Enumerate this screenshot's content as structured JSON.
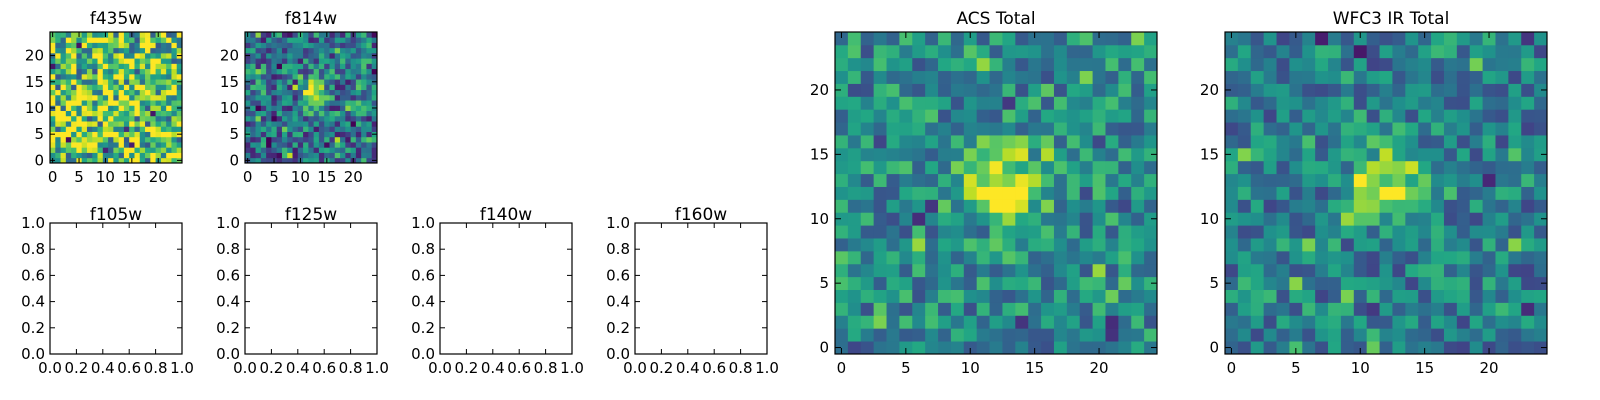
{
  "figure": {
    "background": "#ffffff",
    "colormap": "viridis"
  },
  "chart_data": [
    {
      "id": "f435w",
      "type": "heatmap",
      "title": "f435w",
      "image_size": 25,
      "xlim": [
        -0.5,
        24.5
      ],
      "ylim": [
        -0.5,
        24.5
      ],
      "xticks": [
        0,
        5,
        10,
        15,
        20
      ],
      "yticks": [
        0,
        5,
        10,
        15,
        20
      ],
      "tick_labels_x": [
        "0",
        "5",
        "10",
        "15",
        "20"
      ],
      "tick_labels_y": [
        "0",
        "5",
        "10",
        "15",
        "20"
      ],
      "source": {
        "center": [
          12,
          12
        ],
        "amplitude": 0.05,
        "sigma": 2.5
      },
      "background": {
        "level": 0.72,
        "noise": 0.45,
        "seed": 11
      }
    },
    {
      "id": "f814w",
      "type": "heatmap",
      "title": "f814w",
      "image_size": 25,
      "xlim": [
        -0.5,
        24.5
      ],
      "ylim": [
        -0.5,
        24.5
      ],
      "xticks": [
        0,
        5,
        10,
        15,
        20
      ],
      "yticks": [
        0,
        5,
        10,
        15,
        20
      ],
      "tick_labels_x": [
        "0",
        "5",
        "10",
        "15",
        "20"
      ],
      "tick_labels_y": [
        "0",
        "5",
        "10",
        "15",
        "20"
      ],
      "source": {
        "center": [
          12.5,
          12.5
        ],
        "amplitude": 0.55,
        "sigma": 1.5
      },
      "background": {
        "level": 0.4,
        "noise": 0.32,
        "seed": 23
      }
    },
    {
      "id": "f105w",
      "type": "empty",
      "title": "f105w",
      "xlim": [
        0,
        1
      ],
      "ylim": [
        0,
        1
      ],
      "tick_labels_x": [
        "0.0",
        "0.2",
        "0.4",
        "0.6",
        "0.8",
        "1.0"
      ],
      "tick_labels_y": [
        "0.0",
        "0.2",
        "0.4",
        "0.6",
        "0.8",
        "1.0"
      ]
    },
    {
      "id": "f125w",
      "type": "empty",
      "title": "f125w",
      "xlim": [
        0,
        1
      ],
      "ylim": [
        0,
        1
      ],
      "tick_labels_x": [
        "0.0",
        "0.2",
        "0.4",
        "0.6",
        "0.8",
        "1.0"
      ],
      "tick_labels_y": [
        "0.0",
        "0.2",
        "0.4",
        "0.6",
        "0.8",
        "1.0"
      ]
    },
    {
      "id": "f140w",
      "type": "empty",
      "title": "f140w",
      "xlim": [
        0,
        1
      ],
      "ylim": [
        0,
        1
      ],
      "tick_labels_x": [
        "0.0",
        "0.2",
        "0.4",
        "0.6",
        "0.8",
        "1.0"
      ],
      "tick_labels_y": [
        "0.0",
        "0.2",
        "0.4",
        "0.6",
        "0.8",
        "1.0"
      ]
    },
    {
      "id": "f160w",
      "type": "empty",
      "title": "f160w",
      "xlim": [
        0,
        1
      ],
      "ylim": [
        0,
        1
      ],
      "tick_labels_x": [
        "0.0",
        "0.2",
        "0.4",
        "0.6",
        "0.8",
        "1.0"
      ],
      "tick_labels_y": [
        "0.0",
        "0.2",
        "0.4",
        "0.6",
        "0.8",
        "1.0"
      ]
    },
    {
      "id": "acs-total",
      "type": "heatmap",
      "title": "ACS Total",
      "image_size": 25,
      "xlim": [
        -0.5,
        24.5
      ],
      "ylim": [
        -0.5,
        24.5
      ],
      "xticks": [
        0,
        5,
        10,
        15,
        20
      ],
      "yticks": [
        0,
        5,
        10,
        15,
        20
      ],
      "tick_labels_x": [
        "0",
        "5",
        "10",
        "15",
        "20"
      ],
      "tick_labels_y": [
        "0",
        "5",
        "10",
        "15",
        "20"
      ],
      "source": {
        "center": [
          12.5,
          12.5
        ],
        "amplitude": 0.55,
        "sigma": 2.2
      },
      "background": {
        "level": 0.48,
        "noise": 0.24,
        "seed": 37
      }
    },
    {
      "id": "wfc3-ir-total",
      "type": "heatmap",
      "title": "WFC3 IR Total",
      "image_size": 25,
      "xlim": [
        -0.5,
        24.5
      ],
      "ylim": [
        -0.5,
        24.5
      ],
      "xticks": [
        0,
        5,
        10,
        15,
        20
      ],
      "yticks": [
        0,
        5,
        10,
        15,
        20
      ],
      "tick_labels_x": [
        "0",
        "5",
        "10",
        "15",
        "20"
      ],
      "tick_labels_y": [
        "0",
        "5",
        "10",
        "15",
        "20"
      ],
      "source": {
        "center": [
          12.5,
          12.5
        ],
        "amplitude": 0.5,
        "sigma": 2.0
      },
      "background": {
        "level": 0.44,
        "noise": 0.24,
        "seed": 53
      }
    }
  ]
}
